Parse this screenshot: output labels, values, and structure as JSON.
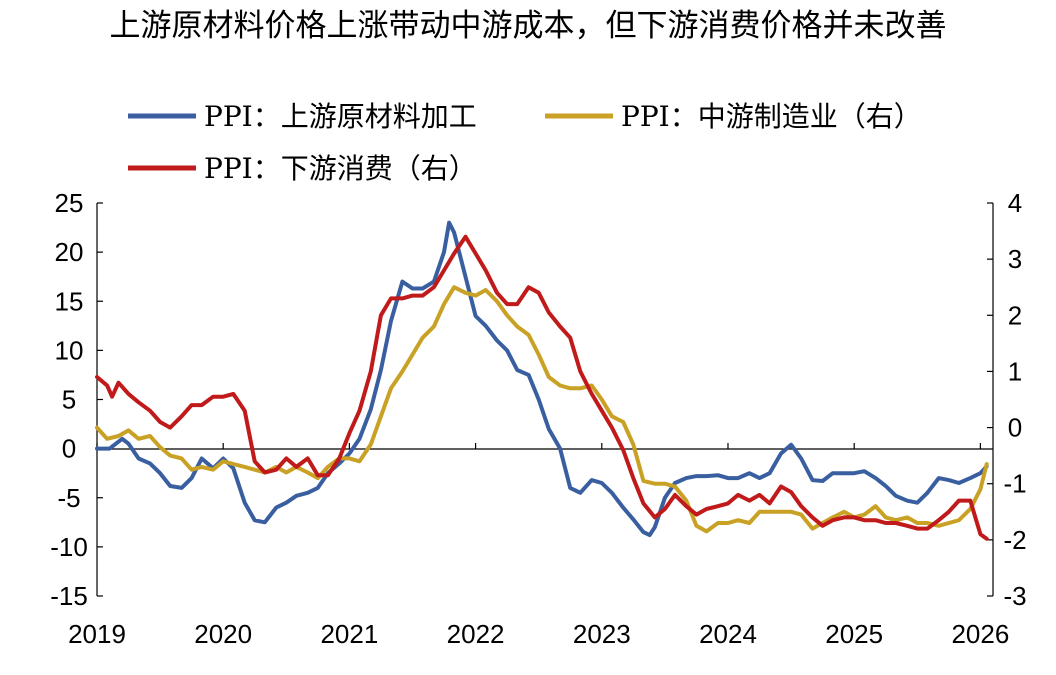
{
  "chart_data": {
    "type": "line",
    "title": "上游原材料价格上涨带动中游成本，但下游消费价格并未改善",
    "x_ticks": [
      "2019",
      "2020",
      "2021",
      "2022",
      "2023",
      "2024",
      "2025",
      "2026"
    ],
    "x_range": [
      2019.0,
      2026.1
    ],
    "y_left": {
      "min": -15,
      "max": 25,
      "ticks": [
        "25",
        "20",
        "15",
        "10",
        "5",
        "0",
        "-5",
        "-10",
        "-15"
      ],
      "tick_values": [
        25,
        20,
        15,
        10,
        5,
        0,
        -5,
        -10,
        -15
      ]
    },
    "y_right": {
      "min": -3,
      "max": 4,
      "ticks": [
        "4",
        "3",
        "2",
        "1",
        "0",
        "-1",
        "-2",
        "-3"
      ],
      "tick_values": [
        4,
        3,
        2,
        1,
        0,
        -1,
        -2,
        -3
      ]
    },
    "legend_position": "top",
    "series": [
      {
        "name": "PPI：上游原材料加工",
        "color": "#3A5FA0",
        "axis": "left",
        "points": [
          [
            2019.0,
            0
          ],
          [
            2019.1,
            0
          ],
          [
            2019.2,
            1
          ],
          [
            2019.25,
            0.5
          ],
          [
            2019.33,
            -1
          ],
          [
            2019.42,
            -1.5
          ],
          [
            2019.5,
            -2.5
          ],
          [
            2019.58,
            -3.8
          ],
          [
            2019.67,
            -4
          ],
          [
            2019.75,
            -3
          ],
          [
            2019.83,
            -1
          ],
          [
            2019.92,
            -2
          ],
          [
            2020.0,
            -1
          ],
          [
            2020.08,
            -2
          ],
          [
            2020.17,
            -5.5
          ],
          [
            2020.25,
            -7.3
          ],
          [
            2020.33,
            -7.5
          ],
          [
            2020.42,
            -6
          ],
          [
            2020.5,
            -5.5
          ],
          [
            2020.58,
            -4.8
          ],
          [
            2020.67,
            -4.5
          ],
          [
            2020.75,
            -4
          ],
          [
            2020.83,
            -2.5
          ],
          [
            2020.92,
            -1.5
          ],
          [
            2021.0,
            -0.5
          ],
          [
            2021.08,
            1
          ],
          [
            2021.17,
            4
          ],
          [
            2021.25,
            8
          ],
          [
            2021.33,
            13
          ],
          [
            2021.42,
            17
          ],
          [
            2021.5,
            16.3
          ],
          [
            2021.58,
            16.3
          ],
          [
            2021.67,
            17
          ],
          [
            2021.75,
            20
          ],
          [
            2021.79,
            23
          ],
          [
            2021.83,
            22
          ],
          [
            2021.92,
            17.5
          ],
          [
            2022.0,
            13.5
          ],
          [
            2022.08,
            12.5
          ],
          [
            2022.17,
            11
          ],
          [
            2022.25,
            10
          ],
          [
            2022.33,
            8
          ],
          [
            2022.42,
            7.5
          ],
          [
            2022.5,
            5
          ],
          [
            2022.58,
            2
          ],
          [
            2022.67,
            0
          ],
          [
            2022.75,
            -4
          ],
          [
            2022.83,
            -4.5
          ],
          [
            2022.92,
            -3.2
          ],
          [
            2023.0,
            -3.5
          ],
          [
            2023.08,
            -4.5
          ],
          [
            2023.17,
            -6
          ],
          [
            2023.25,
            -7.2
          ],
          [
            2023.33,
            -8.5
          ],
          [
            2023.38,
            -8.8
          ],
          [
            2023.42,
            -8
          ],
          [
            2023.5,
            -5
          ],
          [
            2023.58,
            -3.5
          ],
          [
            2023.67,
            -3
          ],
          [
            2023.75,
            -2.8
          ],
          [
            2023.83,
            -2.8
          ],
          [
            2023.92,
            -2.7
          ],
          [
            2024.0,
            -3
          ],
          [
            2024.08,
            -3
          ],
          [
            2024.17,
            -2.5
          ],
          [
            2024.25,
            -3
          ],
          [
            2024.33,
            -2.5
          ],
          [
            2024.42,
            -0.5
          ],
          [
            2024.5,
            0.4
          ],
          [
            2024.58,
            -1
          ],
          [
            2024.67,
            -3.2
          ],
          [
            2024.75,
            -3.3
          ],
          [
            2024.83,
            -2.5
          ],
          [
            2024.92,
            -2.5
          ],
          [
            2025.0,
            -2.5
          ],
          [
            2025.08,
            -2.3
          ],
          [
            2025.17,
            -3
          ],
          [
            2025.25,
            -3.8
          ],
          [
            2025.33,
            -4.8
          ],
          [
            2025.42,
            -5.3
          ],
          [
            2025.5,
            -5.5
          ],
          [
            2025.58,
            -4.5
          ],
          [
            2025.67,
            -3
          ],
          [
            2025.75,
            -3.2
          ],
          [
            2025.83,
            -3.5
          ],
          [
            2025.92,
            -3
          ],
          [
            2026.0,
            -2.5
          ],
          [
            2026.05,
            -1.8
          ]
        ]
      },
      {
        "name": "PPI：中游制造业（右）",
        "color": "#C9A125",
        "axis": "right",
        "points": [
          [
            2019.0,
            0
          ],
          [
            2019.08,
            -0.2
          ],
          [
            2019.17,
            -0.15
          ],
          [
            2019.25,
            -0.05
          ],
          [
            2019.33,
            -0.2
          ],
          [
            2019.42,
            -0.15
          ],
          [
            2019.5,
            -0.35
          ],
          [
            2019.58,
            -0.5
          ],
          [
            2019.67,
            -0.55
          ],
          [
            2019.75,
            -0.75
          ],
          [
            2019.83,
            -0.7
          ],
          [
            2019.92,
            -0.75
          ],
          [
            2020.0,
            -0.6
          ],
          [
            2020.08,
            -0.65
          ],
          [
            2020.17,
            -0.7
          ],
          [
            2020.25,
            -0.75
          ],
          [
            2020.33,
            -0.8
          ],
          [
            2020.42,
            -0.7
          ],
          [
            2020.5,
            -0.8
          ],
          [
            2020.58,
            -0.7
          ],
          [
            2020.67,
            -0.8
          ],
          [
            2020.75,
            -0.9
          ],
          [
            2020.83,
            -0.7
          ],
          [
            2020.92,
            -0.55
          ],
          [
            2021.0,
            -0.55
          ],
          [
            2021.08,
            -0.6
          ],
          [
            2021.17,
            -0.3
          ],
          [
            2021.25,
            0.2
          ],
          [
            2021.33,
            0.7
          ],
          [
            2021.42,
            1.0
          ],
          [
            2021.5,
            1.3
          ],
          [
            2021.58,
            1.6
          ],
          [
            2021.67,
            1.8
          ],
          [
            2021.75,
            2.2
          ],
          [
            2021.83,
            2.5
          ],
          [
            2021.92,
            2.4
          ],
          [
            2022.0,
            2.35
          ],
          [
            2022.08,
            2.45
          ],
          [
            2022.17,
            2.25
          ],
          [
            2022.25,
            2.0
          ],
          [
            2022.33,
            1.8
          ],
          [
            2022.42,
            1.65
          ],
          [
            2022.5,
            1.3
          ],
          [
            2022.58,
            0.9
          ],
          [
            2022.67,
            0.75
          ],
          [
            2022.75,
            0.7
          ],
          [
            2022.83,
            0.7
          ],
          [
            2022.92,
            0.75
          ],
          [
            2023.0,
            0.5
          ],
          [
            2023.08,
            0.2
          ],
          [
            2023.17,
            0.1
          ],
          [
            2023.25,
            -0.3
          ],
          [
            2023.33,
            -0.95
          ],
          [
            2023.42,
            -1.0
          ],
          [
            2023.5,
            -1.0
          ],
          [
            2023.58,
            -1.05
          ],
          [
            2023.67,
            -1.3
          ],
          [
            2023.75,
            -1.75
          ],
          [
            2023.83,
            -1.85
          ],
          [
            2023.92,
            -1.7
          ],
          [
            2024.0,
            -1.7
          ],
          [
            2024.08,
            -1.65
          ],
          [
            2024.17,
            -1.7
          ],
          [
            2024.25,
            -1.5
          ],
          [
            2024.33,
            -1.5
          ],
          [
            2024.42,
            -1.5
          ],
          [
            2024.5,
            -1.5
          ],
          [
            2024.58,
            -1.55
          ],
          [
            2024.67,
            -1.8
          ],
          [
            2024.75,
            -1.7
          ],
          [
            2024.83,
            -1.6
          ],
          [
            2024.92,
            -1.5
          ],
          [
            2025.0,
            -1.6
          ],
          [
            2025.08,
            -1.55
          ],
          [
            2025.17,
            -1.4
          ],
          [
            2025.25,
            -1.6
          ],
          [
            2025.33,
            -1.65
          ],
          [
            2025.42,
            -1.6
          ],
          [
            2025.5,
            -1.7
          ],
          [
            2025.58,
            -1.7
          ],
          [
            2025.67,
            -1.75
          ],
          [
            2025.75,
            -1.7
          ],
          [
            2025.83,
            -1.65
          ],
          [
            2025.92,
            -1.45
          ],
          [
            2026.0,
            -1.1
          ],
          [
            2026.05,
            -0.65
          ]
        ]
      },
      {
        "name": "PPI：下游消费（右）",
        "color": "#C01A1A",
        "axis": "right",
        "points": [
          [
            2019.0,
            0.9
          ],
          [
            2019.08,
            0.75
          ],
          [
            2019.12,
            0.55
          ],
          [
            2019.17,
            0.8
          ],
          [
            2019.25,
            0.6
          ],
          [
            2019.33,
            0.45
          ],
          [
            2019.42,
            0.3
          ],
          [
            2019.5,
            0.1
          ],
          [
            2019.58,
            0.0
          ],
          [
            2019.67,
            0.2
          ],
          [
            2019.75,
            0.4
          ],
          [
            2019.83,
            0.4
          ],
          [
            2019.92,
            0.55
          ],
          [
            2020.0,
            0.55
          ],
          [
            2020.08,
            0.6
          ],
          [
            2020.17,
            0.3
          ],
          [
            2020.25,
            -0.6
          ],
          [
            2020.33,
            -0.8
          ],
          [
            2020.42,
            -0.75
          ],
          [
            2020.5,
            -0.55
          ],
          [
            2020.58,
            -0.7
          ],
          [
            2020.67,
            -0.55
          ],
          [
            2020.75,
            -0.85
          ],
          [
            2020.83,
            -0.85
          ],
          [
            2020.92,
            -0.55
          ],
          [
            2021.0,
            -0.1
          ],
          [
            2021.08,
            0.3
          ],
          [
            2021.17,
            1.0
          ],
          [
            2021.25,
            2.0
          ],
          [
            2021.33,
            2.3
          ],
          [
            2021.42,
            2.3
          ],
          [
            2021.5,
            2.35
          ],
          [
            2021.58,
            2.35
          ],
          [
            2021.67,
            2.5
          ],
          [
            2021.75,
            2.8
          ],
          [
            2021.83,
            3.1
          ],
          [
            2021.92,
            3.4
          ],
          [
            2022.0,
            3.1
          ],
          [
            2022.08,
            2.8
          ],
          [
            2022.17,
            2.4
          ],
          [
            2022.25,
            2.2
          ],
          [
            2022.33,
            2.2
          ],
          [
            2022.42,
            2.5
          ],
          [
            2022.5,
            2.4
          ],
          [
            2022.58,
            2.05
          ],
          [
            2022.67,
            1.8
          ],
          [
            2022.75,
            1.6
          ],
          [
            2022.83,
            1.0
          ],
          [
            2022.92,
            0.6
          ],
          [
            2023.0,
            0.3
          ],
          [
            2023.08,
            0.0
          ],
          [
            2023.17,
            -0.4
          ],
          [
            2023.25,
            -0.9
          ],
          [
            2023.33,
            -1.35
          ],
          [
            2023.42,
            -1.6
          ],
          [
            2023.5,
            -1.45
          ],
          [
            2023.58,
            -1.2
          ],
          [
            2023.67,
            -1.4
          ],
          [
            2023.75,
            -1.55
          ],
          [
            2023.83,
            -1.45
          ],
          [
            2023.92,
            -1.4
          ],
          [
            2024.0,
            -1.35
          ],
          [
            2024.08,
            -1.2
          ],
          [
            2024.17,
            -1.3
          ],
          [
            2024.25,
            -1.2
          ],
          [
            2024.33,
            -1.35
          ],
          [
            2024.42,
            -1.05
          ],
          [
            2024.5,
            -1.15
          ],
          [
            2024.58,
            -1.4
          ],
          [
            2024.67,
            -1.6
          ],
          [
            2024.75,
            -1.75
          ],
          [
            2024.83,
            -1.65
          ],
          [
            2024.92,
            -1.6
          ],
          [
            2025.0,
            -1.6
          ],
          [
            2025.08,
            -1.65
          ],
          [
            2025.17,
            -1.65
          ],
          [
            2025.25,
            -1.7
          ],
          [
            2025.33,
            -1.7
          ],
          [
            2025.42,
            -1.75
          ],
          [
            2025.5,
            -1.8
          ],
          [
            2025.58,
            -1.8
          ],
          [
            2025.67,
            -1.65
          ],
          [
            2025.75,
            -1.5
          ],
          [
            2025.83,
            -1.3
          ],
          [
            2025.92,
            -1.3
          ],
          [
            2026.0,
            -1.9
          ],
          [
            2026.05,
            -1.98
          ]
        ]
      }
    ]
  }
}
